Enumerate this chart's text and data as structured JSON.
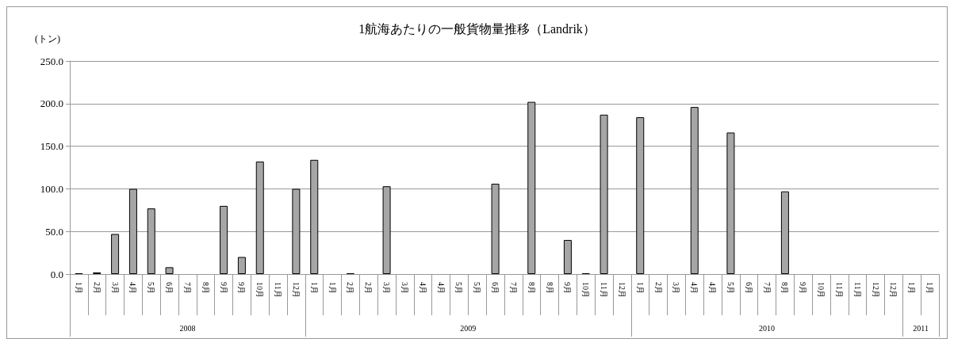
{
  "chart_data": {
    "type": "bar",
    "title": "1航海あたりの一般貨物量推移（Landrik）",
    "ylabel": "(トン)",
    "categories": [
      "1月",
      "2月",
      "3月",
      "4月",
      "5月",
      "6月",
      "7月",
      "8月",
      "9月",
      "9月",
      "10月",
      "11月",
      "12月",
      "1月",
      "1月",
      "2月",
      "2月",
      "3月",
      "3月",
      "4月",
      "4月",
      "5月",
      "5月",
      "6月",
      "7月",
      "8月",
      "8月",
      "9月",
      "10月",
      "11月",
      "12月",
      "1月",
      "2月",
      "3月",
      "4月",
      "4月",
      "5月",
      "6月",
      "7月",
      "8月",
      "9月",
      "10月",
      "11月",
      "11月",
      "12月",
      "12月",
      "1月",
      "1月"
    ],
    "values": [
      1,
      2,
      47,
      100,
      77,
      8,
      null,
      null,
      80,
      20,
      132,
      null,
      100,
      134,
      null,
      1,
      null,
      103,
      null,
      null,
      null,
      null,
      null,
      106,
      null,
      202,
      null,
      40,
      1,
      187,
      null,
      184,
      null,
      null,
      196,
      null,
      166,
      null,
      null,
      97,
      null,
      null,
      null,
      null,
      null,
      null,
      null,
      null
    ],
    "color": "#a6a6a6",
    "ylim": [
      0,
      250
    ],
    "yticks": [
      {
        "value": 0,
        "label": "0.0"
      },
      {
        "value": 50,
        "label": "50.0"
      },
      {
        "value": 100,
        "label": "100.0"
      },
      {
        "value": 150,
        "label": "150.0"
      },
      {
        "value": 200,
        "label": "200.0"
      },
      {
        "value": 250,
        "label": "250.0"
      }
    ],
    "grid": "y",
    "annotations": [
      "2008",
      "2009",
      "2010",
      "2011"
    ]
  }
}
